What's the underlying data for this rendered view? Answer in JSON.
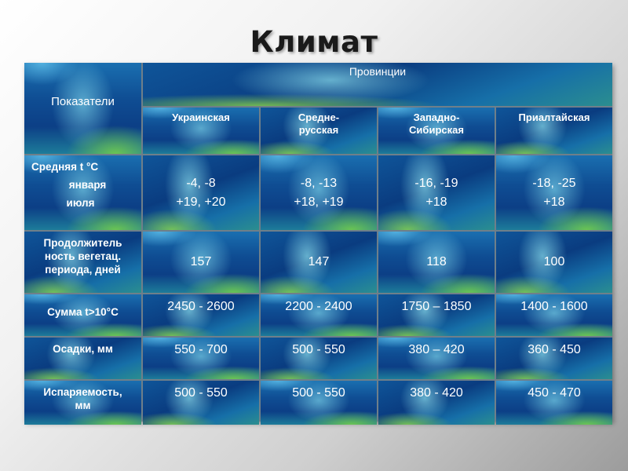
{
  "title": "Климат",
  "header": {
    "indicators": "Показатели",
    "provinces": "Провинции",
    "columns": [
      "Украинская",
      "Средне-\nрусская",
      "Западно-\nСибирская",
      "Приалтайская"
    ]
  },
  "rows": [
    {
      "label_lines": [
        "Средняя t °С",
        "января",
        "июля"
      ],
      "values": [
        [
          "-4, -8",
          "+19, +20"
        ],
        [
          "-8, -13",
          "+18, +19"
        ],
        [
          "-16, -19",
          "+18"
        ],
        [
          "-18, -25",
          "+18"
        ]
      ]
    },
    {
      "label_lines": [
        "Продолжитель",
        "ность вегетац.",
        "периода, дней"
      ],
      "values": [
        "157",
        "147",
        "118",
        "100"
      ]
    },
    {
      "label": "Сумма t>10°С",
      "values": [
        "2450 - 2600",
        "2200 - 2400",
        "1750 – 1850",
        "1400 - 1600"
      ]
    },
    {
      "label": "Осадки, мм",
      "values": [
        "550 - 700",
        "500 - 550",
        "380 – 420",
        "360 - 450"
      ]
    },
    {
      "label_lines": [
        "Испаряемость,",
        "мм"
      ],
      "values": [
        "500 - 550",
        "500 - 550",
        "380 - 420",
        "450 - 470"
      ]
    }
  ]
}
